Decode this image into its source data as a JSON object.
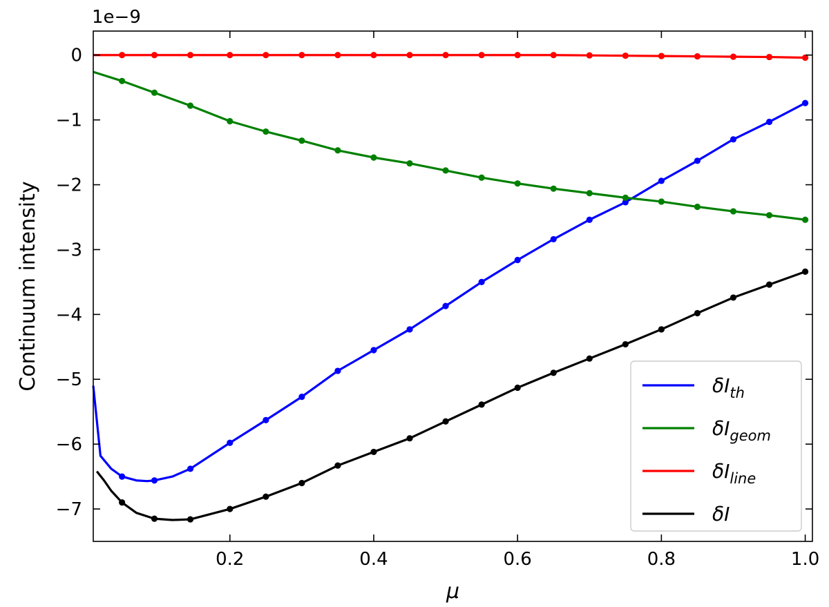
{
  "chart_data": {
    "type": "line",
    "xlabel": "μ",
    "ylabel": "Continuum intensity",
    "offset_text": "1e−9",
    "xlim": [
      0.01,
      1.01
    ],
    "ylim": [
      -7.5,
      0.37
    ],
    "xticks": [
      0.2,
      0.4,
      0.6,
      0.8,
      1.0
    ],
    "xtick_labels": [
      "0.2",
      "0.4",
      "0.6",
      "0.8",
      "1.0"
    ],
    "yticks": [
      0,
      -1,
      -2,
      -3,
      -4,
      -5,
      -6,
      -7
    ],
    "ytick_labels": [
      "0",
      "−1",
      "−2",
      "−3",
      "−4",
      "−5",
      "−6",
      "−7"
    ],
    "grid": false,
    "legend_position": "lower-right",
    "series": [
      {
        "name": "δI_th",
        "legend_main": "δI",
        "legend_sub": "th",
        "color": "#0000ff",
        "x": [
          0.01,
          0.02,
          0.035,
          0.05,
          0.07,
          0.085,
          0.095,
          0.12,
          0.145,
          0.2,
          0.25,
          0.3,
          0.35,
          0.4,
          0.45,
          0.5,
          0.55,
          0.6,
          0.65,
          0.7,
          0.75,
          0.8,
          0.85,
          0.9,
          0.95,
          1.0
        ],
        "y": [
          -5.1,
          -6.18,
          -6.38,
          -6.5,
          -6.56,
          -6.57,
          -6.56,
          -6.5,
          -6.38,
          -5.98,
          -5.63,
          -5.27,
          -4.87,
          -4.55,
          -4.23,
          -3.87,
          -3.5,
          -3.16,
          -2.84,
          -2.54,
          -2.27,
          -1.94,
          -1.63,
          -1.3,
          -1.03,
          -0.74
        ],
        "markers_x": [
          0.05,
          0.095,
          0.145,
          0.2,
          0.25,
          0.3,
          0.35,
          0.4,
          0.45,
          0.5,
          0.55,
          0.6,
          0.65,
          0.7,
          0.75,
          0.8,
          0.85,
          0.9,
          0.95,
          1.0
        ],
        "markers_y": [
          -6.5,
          -6.56,
          -6.38,
          -5.98,
          -5.63,
          -5.27,
          -4.87,
          -4.55,
          -4.23,
          -3.87,
          -3.5,
          -3.16,
          -2.84,
          -2.54,
          -2.27,
          -1.94,
          -1.63,
          -1.3,
          -1.03,
          -0.74
        ]
      },
      {
        "name": "δI_geom",
        "legend_main": "δI",
        "legend_sub": "geom",
        "color": "#008000",
        "x": [
          0.01,
          0.05,
          0.095,
          0.145,
          0.2,
          0.25,
          0.3,
          0.35,
          0.4,
          0.45,
          0.5,
          0.55,
          0.6,
          0.65,
          0.7,
          0.75,
          0.8,
          0.85,
          0.9,
          0.95,
          1.0
        ],
        "y": [
          -0.26,
          -0.4,
          -0.58,
          -0.78,
          -1.02,
          -1.18,
          -1.32,
          -1.47,
          -1.58,
          -1.67,
          -1.78,
          -1.89,
          -1.98,
          -2.06,
          -2.13,
          -2.2,
          -2.26,
          -2.34,
          -2.41,
          -2.47,
          -2.54
        ],
        "markers_x": [
          0.05,
          0.095,
          0.145,
          0.2,
          0.25,
          0.3,
          0.35,
          0.4,
          0.45,
          0.5,
          0.55,
          0.6,
          0.65,
          0.7,
          0.75,
          0.8,
          0.85,
          0.9,
          0.95,
          1.0
        ],
        "markers_y": [
          -0.4,
          -0.58,
          -0.78,
          -1.02,
          -1.18,
          -1.32,
          -1.47,
          -1.58,
          -1.67,
          -1.78,
          -1.89,
          -1.98,
          -2.06,
          -2.13,
          -2.2,
          -2.26,
          -2.34,
          -2.41,
          -2.47,
          -2.54
        ]
      },
      {
        "name": "δI_line",
        "legend_main": "δI",
        "legend_sub": "line",
        "color": "#ff0000",
        "x": [
          0.01,
          0.05,
          0.095,
          0.145,
          0.2,
          0.25,
          0.3,
          0.35,
          0.4,
          0.45,
          0.5,
          0.55,
          0.6,
          0.65,
          0.7,
          0.75,
          0.8,
          0.85,
          0.9,
          0.95,
          1.0
        ],
        "y": [
          0.0,
          0.0,
          0.0,
          0.0,
          0.0,
          0.0,
          0.0,
          0.0,
          0.0,
          0.0,
          0.0,
          0.0,
          0.0,
          0.0,
          -0.005,
          -0.01,
          -0.015,
          -0.02,
          -0.025,
          -0.03,
          -0.04
        ],
        "markers_x": [
          0.05,
          0.095,
          0.145,
          0.2,
          0.25,
          0.3,
          0.35,
          0.4,
          0.45,
          0.5,
          0.55,
          0.6,
          0.65,
          0.7,
          0.75,
          0.8,
          0.85,
          0.9,
          0.95,
          1.0
        ],
        "markers_y": [
          0.0,
          0.0,
          0.0,
          0.0,
          0.0,
          0.0,
          0.0,
          0.0,
          0.0,
          0.0,
          0.0,
          0.0,
          0.0,
          -0.005,
          -0.01,
          -0.015,
          -0.02,
          -0.025,
          -0.03,
          -0.04
        ]
      },
      {
        "name": "δI",
        "legend_main": "δI",
        "legend_sub": "",
        "color": "#000000",
        "x": [
          0.015,
          0.025,
          0.035,
          0.05,
          0.07,
          0.095,
          0.12,
          0.145,
          0.2,
          0.25,
          0.3,
          0.35,
          0.4,
          0.45,
          0.5,
          0.55,
          0.6,
          0.65,
          0.7,
          0.75,
          0.8,
          0.85,
          0.9,
          0.95,
          1.0
        ],
        "y": [
          -6.42,
          -6.56,
          -6.72,
          -6.9,
          -7.06,
          -7.15,
          -7.17,
          -7.16,
          -7.0,
          -6.81,
          -6.6,
          -6.33,
          -6.12,
          -5.91,
          -5.65,
          -5.39,
          -5.13,
          -4.9,
          -4.68,
          -4.46,
          -4.23,
          -3.98,
          -3.74,
          -3.54,
          -3.34
        ],
        "markers_x": [
          0.05,
          0.095,
          0.145,
          0.2,
          0.25,
          0.3,
          0.35,
          0.4,
          0.45,
          0.5,
          0.55,
          0.6,
          0.65,
          0.7,
          0.75,
          0.8,
          0.85,
          0.9,
          0.95,
          1.0
        ],
        "markers_y": [
          -6.9,
          -7.15,
          -7.16,
          -7.0,
          -6.81,
          -6.6,
          -6.33,
          -6.12,
          -5.91,
          -5.65,
          -5.39,
          -5.13,
          -4.9,
          -4.68,
          -4.46,
          -4.23,
          -3.98,
          -3.74,
          -3.54,
          -3.34
        ]
      }
    ]
  }
}
